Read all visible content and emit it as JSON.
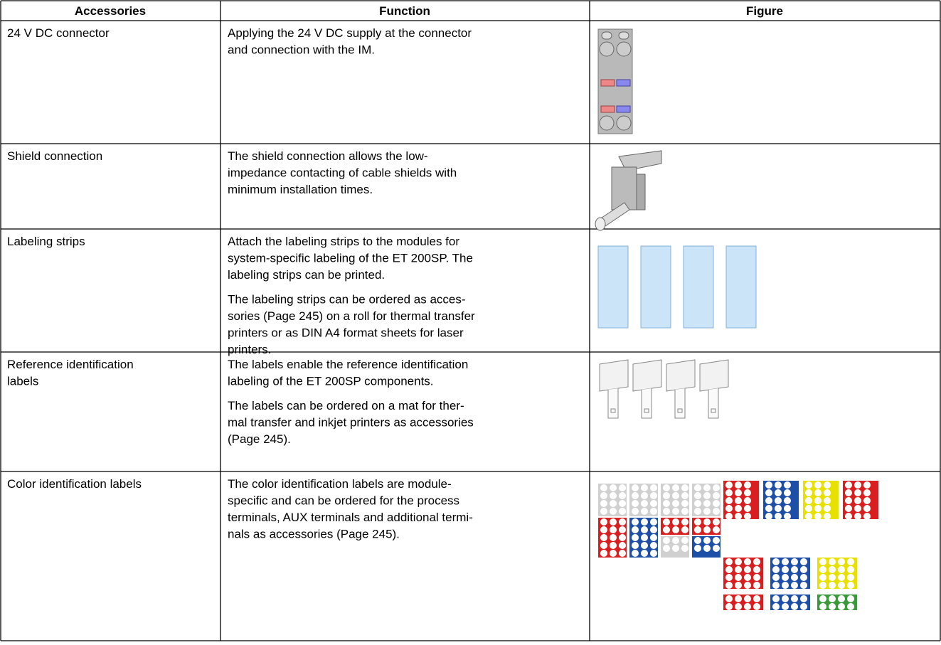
{
  "table": {
    "header": [
      "Accessories",
      "Function",
      "Figure"
    ],
    "rows": [
      {
        "accessory": [
          "24 V DC connector"
        ],
        "function": [
          [
            "Applying the 24 V DC supply at the connector",
            "and connection with the IM."
          ]
        ]
      },
      {
        "accessory": [
          "Shield connection"
        ],
        "function": [
          [
            "The shield connection allows the low-",
            "impedance contacting of cable shields with",
            "minimum installation times."
          ]
        ]
      },
      {
        "accessory": [
          "Labeling strips"
        ],
        "function": [
          [
            "Attach the labeling strips to the modules for",
            "system-specific labeling of the ET 200SP. The",
            "labeling strips can be printed."
          ],
          [
            "The labeling strips can be ordered as acces-",
            "sories (Page 245) on a roll for thermal transfer",
            "printers or as DIN A4 format sheets for laser",
            "printers."
          ]
        ]
      },
      {
        "accessory": [
          "Reference identification",
          "labels"
        ],
        "function": [
          [
            "The labels enable the reference identification",
            "labeling of the ET 200SP components."
          ],
          [
            "The labels can be ordered on a mat for ther-",
            "mal transfer and inkjet printers as  accessories",
            "(Page 245)."
          ]
        ]
      },
      {
        "accessory": [
          "Color identification labels"
        ],
        "function": [
          [
            "The color identification labels are module-",
            "specific and can be ordered for the process",
            "terminals, AUX terminals and additional termi-",
            "nals as accessories (Page 245)."
          ]
        ]
      }
    ]
  }
}
